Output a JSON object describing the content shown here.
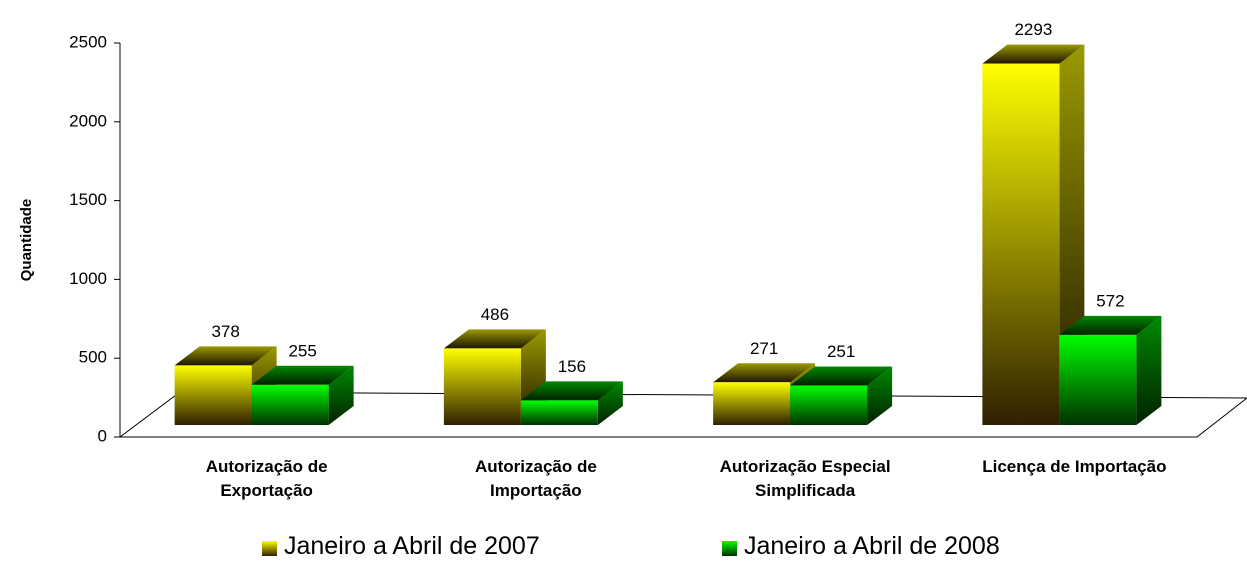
{
  "chart_data": {
    "type": "bar3d",
    "y_label": "Quantidade",
    "categories": [
      "Autorização de\nExportação",
      "Autorização de\nImportação",
      "Autorização Especial\nSimplificada",
      "Licença de Importação"
    ],
    "series": [
      {
        "name": "Janeiro a Abril de 2007",
        "color": "#ffff00",
        "values": [
          378,
          486,
          271,
          2293
        ]
      },
      {
        "name": "Janeiro a Abril de 2008",
        "color": "#00ff00",
        "values": [
          255,
          156,
          251,
          572
        ]
      }
    ],
    "ylim": [
      0,
      2500
    ],
    "yticks": [
      0,
      500,
      1000,
      1500,
      2000,
      2500
    ]
  }
}
